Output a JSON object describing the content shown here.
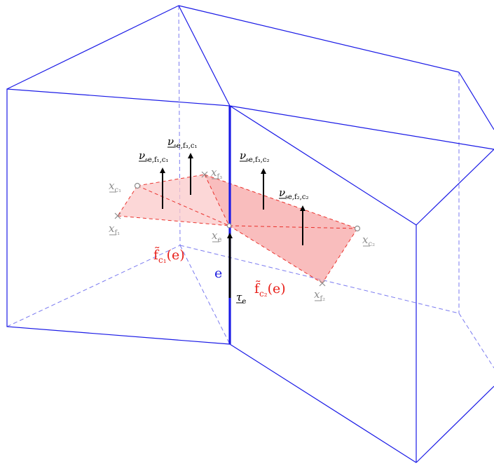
{
  "colors": {
    "edge_blue": "#1a1ae6",
    "dashed_blue": "#7b7bf0",
    "face_red_light": "#f9bcbc",
    "face_red": "#f69a9a",
    "dashed_red": "#e8211b",
    "arrow_black": "#000000",
    "label_gray": "#8c8c8c"
  },
  "labels": {
    "edge": "e",
    "tau": {
      "main": "τ",
      "sub": "e"
    },
    "face_c1": {
      "main": "f̃",
      "sub": "c₁",
      "tail": "(e)"
    },
    "face_c2": {
      "main": "f̃",
      "sub": "c₂",
      "tail": "(e)"
    },
    "x_c1": {
      "main": "x",
      "sub": "c₁"
    },
    "x_c2": {
      "main": "x",
      "sub": "c₂"
    },
    "x_f1": {
      "main": "x",
      "sub": "f₁"
    },
    "x_f2": {
      "main": "x",
      "sub": "f₂"
    },
    "x_f3": {
      "main": "x",
      "sub": "f₃"
    },
    "x_e": {
      "main": "x",
      "sub": "e"
    },
    "nu_f1_c1": {
      "main": "ν",
      "sub": "𝔰e,f₁,c₁"
    },
    "nu_f3_c1": {
      "main": "ν",
      "sub": "𝔰e,f₃,c₁"
    },
    "nu_f3_c2": {
      "main": "ν",
      "sub": "𝔰e,f₃,c₂"
    },
    "nu_f2_c2": {
      "main": "ν",
      "sub": "𝔰e,f₂,c₂"
    }
  }
}
